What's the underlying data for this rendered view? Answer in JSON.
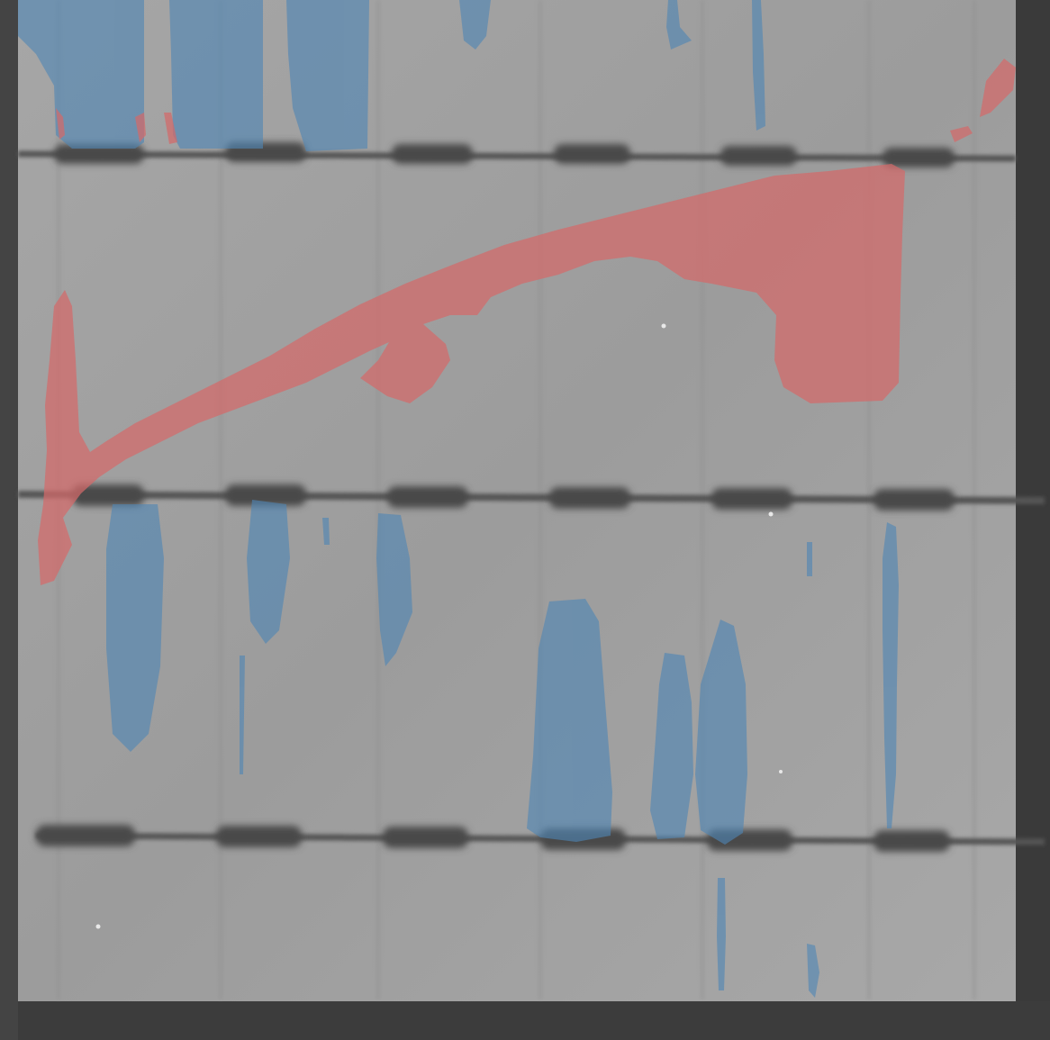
{
  "image": {
    "kind": "grayscale electroluminescence image of a solar cell with segmentation overlay",
    "colors": {
      "cell_background": "#9b9b9b",
      "cell_light": "#a9a9a9",
      "frame_dark": "#4a4a4a",
      "frame_right": "#3c3c3c",
      "busbar": "#5a5a5a",
      "busbar_pad": "#4b4b4b",
      "crack_mask": "#d46a6a",
      "dark_region_mask": "#4f86b5"
    },
    "overlay_classes": [
      {
        "name": "crack",
        "color": "#d46a6a"
      },
      {
        "name": "inactive-area",
        "color": "#4f86b5"
      }
    ]
  }
}
